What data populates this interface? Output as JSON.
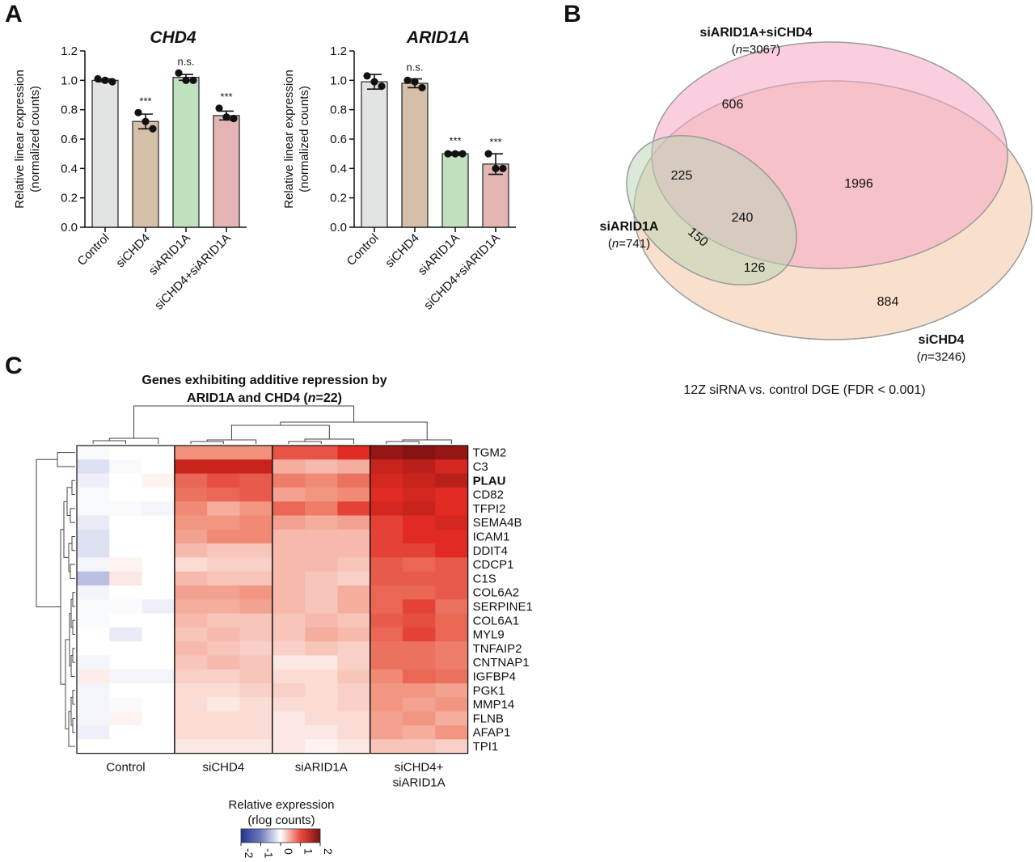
{
  "panels": {
    "a": "A",
    "b": "B",
    "c": "C"
  },
  "chart_data": [
    {
      "type": "bar",
      "id": "chd4",
      "title": "CHD4",
      "ylabel_line1": "Relative linear expression",
      "ylabel_line2": "(normalized counts)",
      "ylim": [
        0,
        1.2
      ],
      "yticks": [
        "0.0",
        "0.2",
        "0.4",
        "0.6",
        "0.8",
        "1.0",
        "1.2"
      ],
      "categories": [
        "Control",
        "siCHD4",
        "siARID1A",
        "siCHD4+siARID1A"
      ],
      "values": [
        1.0,
        0.72,
        1.02,
        0.76
      ],
      "errors": [
        0.01,
        0.05,
        0.02,
        0.03
      ],
      "points": [
        [
          1.01,
          1.0,
          0.99
        ],
        [
          0.78,
          0.72,
          0.67
        ],
        [
          1.05,
          1.0,
          1.0
        ],
        [
          0.81,
          0.75,
          0.74
        ]
      ],
      "significance": [
        "",
        "***",
        "n.s.",
        "***"
      ],
      "colors": [
        "#e2e4e3",
        "#d6bfa9",
        "#bfe1bd",
        "#e3b6b5"
      ]
    },
    {
      "type": "bar",
      "id": "arid1a",
      "title": "ARID1A",
      "ylabel_line1": "Relative linear expression",
      "ylabel_line2": "(normalized counts)",
      "ylim": [
        0,
        1.2
      ],
      "yticks": [
        "0.0",
        "0.2",
        "0.4",
        "0.6",
        "0.8",
        "1.0",
        "1.2"
      ],
      "categories": [
        "Control",
        "siCHD4",
        "siARID1A",
        "siCHD4+siARID1A"
      ],
      "values": [
        0.99,
        0.98,
        0.5,
        0.43
      ],
      "errors": [
        0.05,
        0.03,
        0.01,
        0.07
      ],
      "points": [
        [
          1.03,
          0.99,
          0.96
        ],
        [
          1.0,
          0.99,
          0.95
        ],
        [
          0.5,
          0.5,
          0.5
        ],
        [
          0.5,
          0.4,
          0.4
        ]
      ],
      "significance": [
        "",
        "n.s.",
        "***",
        "***"
      ],
      "colors": [
        "#e2e4e3",
        "#d6bfa9",
        "#bfe1bd",
        "#e3b6b5"
      ]
    },
    {
      "type": "venn",
      "id": "venn",
      "sets": [
        {
          "name": "siARID1A+siCHD4",
          "n_prefix": "n",
          "n_value": "=3067",
          "color": "#f4a7c4"
        },
        {
          "name": "siARID1A",
          "n_prefix": "n",
          "n_value": "=741",
          "color": "#b8d4b4"
        },
        {
          "name": "siCHD4",
          "n_prefix": "n",
          "n_value": "=3246",
          "color": "#f2c6a4"
        }
      ],
      "regions": {
        "combo_only": "606",
        "arid_combo": "225",
        "combo_chd4": "1996",
        "all_three": "240",
        "arid_only": "150",
        "arid_chd4": "126",
        "chd4_only": "884"
      },
      "caption": "12Z siRNA vs. control DGE (FDR < 0.001)"
    },
    {
      "type": "heatmap",
      "id": "heatmap",
      "title_line1": "Genes exhibiting additive repression by",
      "title_line2_prefix": "ARID1A and CHD4 (",
      "title_line2_n": "n",
      "title_line2_suffix": "=22)",
      "genes": [
        "TGM2",
        "C3",
        "PLAU",
        "CD82",
        "TFPI2",
        "SEMA4B",
        "ICAM1",
        "DDIT4",
        "CDCP1",
        "C1S",
        "COL6A2",
        "SERPINE1",
        "COL6A1",
        "MYL9",
        "TNFAIP2",
        "CNTNAP1",
        "IGFBP4",
        "PGK1",
        "MMP14",
        "FLNB",
        "AFAP1",
        "TPI1"
      ],
      "bold_gene": "PLAU",
      "groups": [
        "Control",
        "siCHD4",
        "siARID1A",
        "siCHD4+"
      ],
      "group4_line2": "siARID1A",
      "colorbar_title_line1": "Relative expression",
      "colorbar_title_line2": "(rlog counts)",
      "colorbar_ticks": [
        "-2",
        "-1",
        "0",
        "1",
        "2"
      ],
      "colorbar_range": [
        -2,
        2
      ],
      "colorscale": [
        "#23348e",
        "#ffffff",
        "#c81e1e",
        "#7a1010"
      ],
      "values": [
        [
          -0.05,
          0.0,
          0.0,
          0.95,
          0.95,
          0.95,
          1.45,
          1.45,
          1.8,
          2.4,
          2.5,
          2.4
        ],
        [
          -0.3,
          -0.05,
          0.0,
          2.0,
          2.0,
          2.0,
          0.7,
          0.6,
          0.7,
          2.0,
          2.1,
          1.9
        ],
        [
          -0.15,
          0.0,
          0.1,
          1.3,
          1.5,
          1.4,
          1.1,
          1.0,
          1.2,
          1.9,
          2.0,
          2.1
        ],
        [
          -0.05,
          0.0,
          0.0,
          1.2,
          1.3,
          1.4,
          0.8,
          0.9,
          1.0,
          1.8,
          1.9,
          1.8
        ],
        [
          -0.05,
          -0.05,
          -0.1,
          1.0,
          0.7,
          0.9,
          1.3,
          1.1,
          1.6,
          1.9,
          2.0,
          1.8
        ],
        [
          -0.2,
          0.0,
          0.0,
          0.9,
          0.9,
          1.0,
          0.8,
          0.7,
          0.8,
          1.6,
          1.8,
          1.9
        ],
        [
          -0.3,
          0.0,
          0.0,
          0.8,
          1.0,
          1.0,
          0.6,
          0.6,
          0.6,
          1.6,
          1.8,
          1.8
        ],
        [
          -0.3,
          0.0,
          0.0,
          0.6,
          0.5,
          0.5,
          0.6,
          0.6,
          0.6,
          1.6,
          1.6,
          1.8
        ],
        [
          -0.1,
          0.1,
          0.0,
          0.3,
          0.4,
          0.4,
          0.6,
          0.6,
          0.5,
          1.4,
          1.3,
          1.4
        ],
        [
          -0.6,
          0.2,
          0.0,
          0.6,
          0.5,
          0.5,
          0.6,
          0.5,
          0.4,
          1.4,
          1.4,
          1.4
        ],
        [
          -0.1,
          0.0,
          0.0,
          0.8,
          0.8,
          0.9,
          0.6,
          0.5,
          0.7,
          1.3,
          1.3,
          1.4
        ],
        [
          -0.05,
          -0.05,
          -0.15,
          0.7,
          0.7,
          0.8,
          0.6,
          0.5,
          0.7,
          1.3,
          1.6,
          1.2
        ],
        [
          -0.05,
          0.0,
          0.0,
          0.6,
          0.5,
          0.5,
          0.5,
          0.6,
          0.5,
          1.4,
          1.5,
          1.3
        ],
        [
          0.0,
          -0.2,
          0.0,
          0.5,
          0.6,
          0.5,
          0.5,
          0.7,
          0.6,
          1.3,
          1.6,
          1.3
        ],
        [
          0.0,
          0.0,
          0.0,
          0.6,
          0.5,
          0.4,
          0.4,
          0.5,
          0.4,
          1.2,
          1.2,
          1.1
        ],
        [
          -0.1,
          0.0,
          0.0,
          0.5,
          0.6,
          0.5,
          0.2,
          0.2,
          0.4,
          1.2,
          1.2,
          1.1
        ],
        [
          0.15,
          -0.1,
          -0.1,
          0.4,
          0.4,
          0.5,
          0.3,
          0.3,
          0.5,
          1.0,
          1.3,
          1.2
        ],
        [
          -0.1,
          0.0,
          0.0,
          0.3,
          0.3,
          0.4,
          0.4,
          0.3,
          0.4,
          0.9,
          0.9,
          0.8
        ],
        [
          -0.1,
          -0.05,
          0.0,
          0.3,
          0.2,
          0.3,
          0.3,
          0.3,
          0.4,
          0.9,
          0.8,
          0.9
        ],
        [
          -0.1,
          0.1,
          0.0,
          0.3,
          0.3,
          0.3,
          0.2,
          0.3,
          0.3,
          0.8,
          0.9,
          0.7
        ],
        [
          -0.15,
          0.0,
          0.0,
          0.3,
          0.3,
          0.3,
          0.2,
          0.2,
          0.3,
          0.8,
          0.7,
          0.9
        ],
        [
          0.0,
          0.0,
          0.0,
          0.2,
          0.2,
          0.2,
          0.2,
          0.1,
          0.2,
          0.5,
          0.5,
          0.4
        ]
      ]
    }
  ]
}
